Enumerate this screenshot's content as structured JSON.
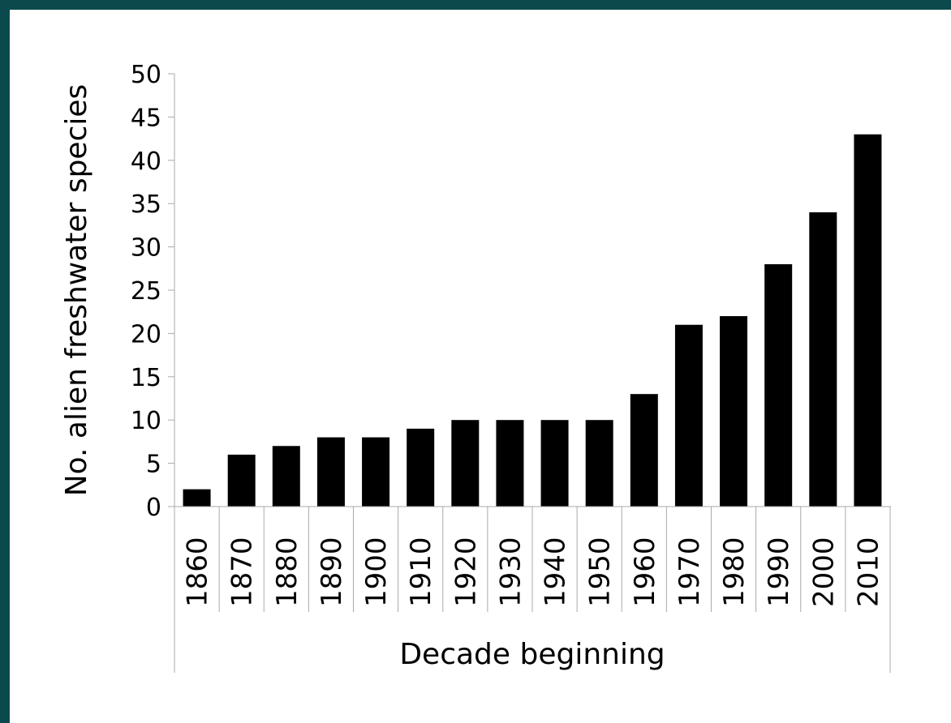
{
  "chart_data": {
    "type": "bar",
    "categories": [
      "1860",
      "1870",
      "1880",
      "1890",
      "1900",
      "1910",
      "1920",
      "1930",
      "1940",
      "1950",
      "1960",
      "1970",
      "1980",
      "1990",
      "2000",
      "2010"
    ],
    "values": [
      2,
      6,
      7,
      8,
      8,
      9,
      10,
      10,
      10,
      10,
      13,
      21,
      22,
      28,
      34,
      43
    ],
    "xlabel": "Decade beginning",
    "ylabel": "No. alien freshwater species",
    "ylim": [
      0,
      50
    ],
    "yticks": [
      0,
      5,
      10,
      15,
      20,
      25,
      30,
      35,
      40,
      45,
      50
    ],
    "grid": false,
    "colors": {
      "bar": "#000000",
      "axis": "#aaaaaa",
      "frame": "#0b4a4c"
    }
  }
}
